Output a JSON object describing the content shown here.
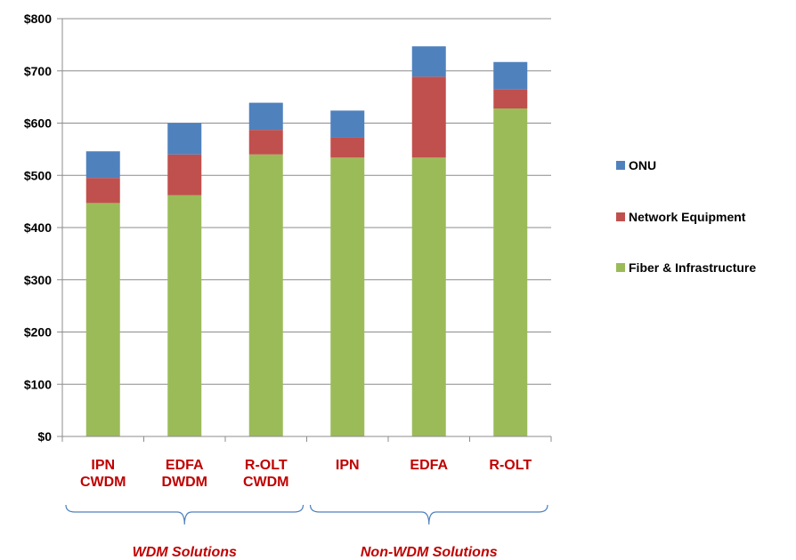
{
  "chart_data": {
    "type": "bar",
    "stacked": true,
    "categories": [
      [
        "IPN",
        "CWDM"
      ],
      [
        "EDFA",
        "DWDM"
      ],
      [
        "R-OLT",
        "CWDM"
      ],
      [
        "IPN"
      ],
      [
        "EDFA"
      ],
      [
        "R-OLT"
      ]
    ],
    "series": [
      {
        "name": "Fiber & Infrastructure",
        "color": "#9BBB59",
        "values": [
          447,
          462,
          540,
          534,
          534,
          628
        ]
      },
      {
        "name": "Network Equipment",
        "color": "#C0504D",
        "values": [
          48,
          78,
          47,
          38,
          155,
          37
        ]
      },
      {
        "name": "ONU",
        "color": "#4F81BD",
        "values": [
          51,
          60,
          52,
          52,
          58,
          52
        ]
      }
    ],
    "legend_order": [
      "ONU",
      "Network Equipment",
      "Fiber & Infrastructure"
    ],
    "legend_position": "right",
    "ylim": [
      0,
      800
    ],
    "yticks": [
      0,
      100,
      200,
      300,
      400,
      500,
      600,
      700,
      800
    ],
    "ytick_labels": [
      "$0",
      "$100",
      "$200",
      "$300",
      "$400",
      "$500",
      "$600",
      "$700",
      "$800"
    ],
    "grid": true,
    "category_label_color": "#C00000",
    "groups": [
      {
        "label": "WDM Solutions",
        "categories": [
          0,
          1,
          2
        ]
      },
      {
        "label": "Non-WDM Solutions",
        "categories": [
          3,
          4,
          5
        ]
      }
    ]
  }
}
